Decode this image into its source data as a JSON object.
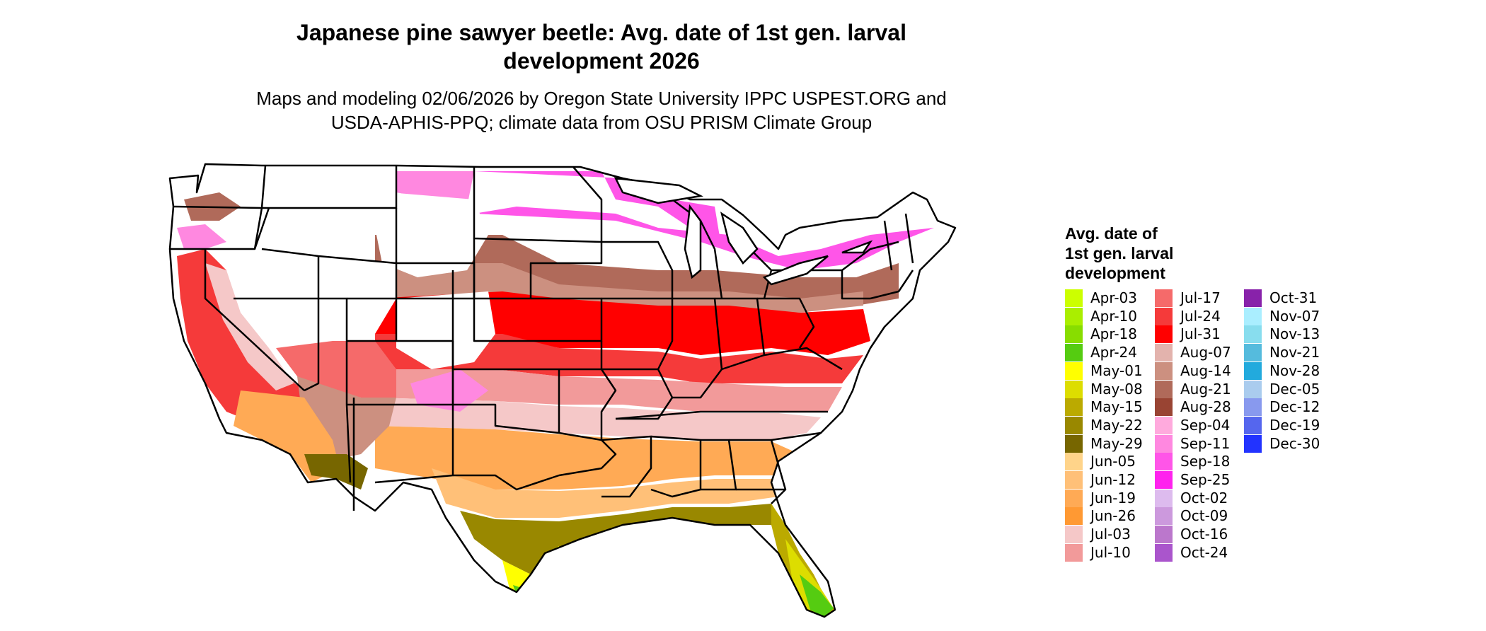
{
  "title_line1": "Japanese pine sawyer beetle: Avg. date of 1st gen. larval",
  "title_line2": "development 2026",
  "subtitle_line1": "Maps and modeling 02/06/2026 by Oregon State University IPPC USPEST.ORG and",
  "subtitle_line2": "USDA-APHIS-PPQ; climate data from OSU PRISM Climate Group",
  "legend": {
    "title_line1": "Avg. date of",
    "title_line2": "1st gen. larval",
    "title_line3": "development",
    "columns": [
      [
        {
          "label": "Apr-03",
          "color": "#ccff00"
        },
        {
          "label": "Apr-10",
          "color": "#aaee00"
        },
        {
          "label": "Apr-18",
          "color": "#88dd00"
        },
        {
          "label": "Apr-24",
          "color": "#55cc11"
        },
        {
          "label": "May-01",
          "color": "#ffff00"
        },
        {
          "label": "May-08",
          "color": "#dddd00"
        },
        {
          "label": "May-15",
          "color": "#bbaa00"
        },
        {
          "label": "May-22",
          "color": "#998800"
        },
        {
          "label": "May-29",
          "color": "#776600"
        },
        {
          "label": "Jun-05",
          "color": "#ffd48a"
        },
        {
          "label": "Jun-12",
          "color": "#ffc078"
        },
        {
          "label": "Jun-19",
          "color": "#ffaa55"
        },
        {
          "label": "Jun-26",
          "color": "#ff9933"
        },
        {
          "label": "Jul-03",
          "color": "#f5c8c8"
        },
        {
          "label": "Jul-10",
          "color": "#f29a9a"
        }
      ],
      [
        {
          "label": "Jul-17",
          "color": "#f56a6a"
        },
        {
          "label": "Jul-24",
          "color": "#f53a3a"
        },
        {
          "label": "Jul-31",
          "color": "#ff0000"
        },
        {
          "label": "Aug-07",
          "color": "#e3b3ad"
        },
        {
          "label": "Aug-14",
          "color": "#cc9080"
        },
        {
          "label": "Aug-21",
          "color": "#b06a5a"
        },
        {
          "label": "Aug-28",
          "color": "#994433"
        },
        {
          "label": "Sep-04",
          "color": "#ffaadd"
        },
        {
          "label": "Sep-11",
          "color": "#ff88e0"
        },
        {
          "label": "Sep-18",
          "color": "#ff55e8"
        },
        {
          "label": "Sep-25",
          "color": "#ff22ee"
        },
        {
          "label": "Oct-02",
          "color": "#ddbbee"
        },
        {
          "label": "Oct-09",
          "color": "#cc99dd"
        },
        {
          "label": "Oct-16",
          "color": "#bb77cc"
        },
        {
          "label": "Oct-24",
          "color": "#aa55cc"
        }
      ],
      [
        {
          "label": "Oct-31",
          "color": "#8822aa"
        },
        {
          "label": "Nov-07",
          "color": "#aaeeff"
        },
        {
          "label": "Nov-13",
          "color": "#88ddee"
        },
        {
          "label": "Nov-21",
          "color": "#55bbdd"
        },
        {
          "label": "Nov-28",
          "color": "#22aadd"
        },
        {
          "label": "Dec-05",
          "color": "#aaccee"
        },
        {
          "label": "Dec-12",
          "color": "#8899ee"
        },
        {
          "label": "Dec-19",
          "color": "#5566ee"
        },
        {
          "label": "Dec-30",
          "color": "#2233ff"
        }
      ]
    ]
  }
}
